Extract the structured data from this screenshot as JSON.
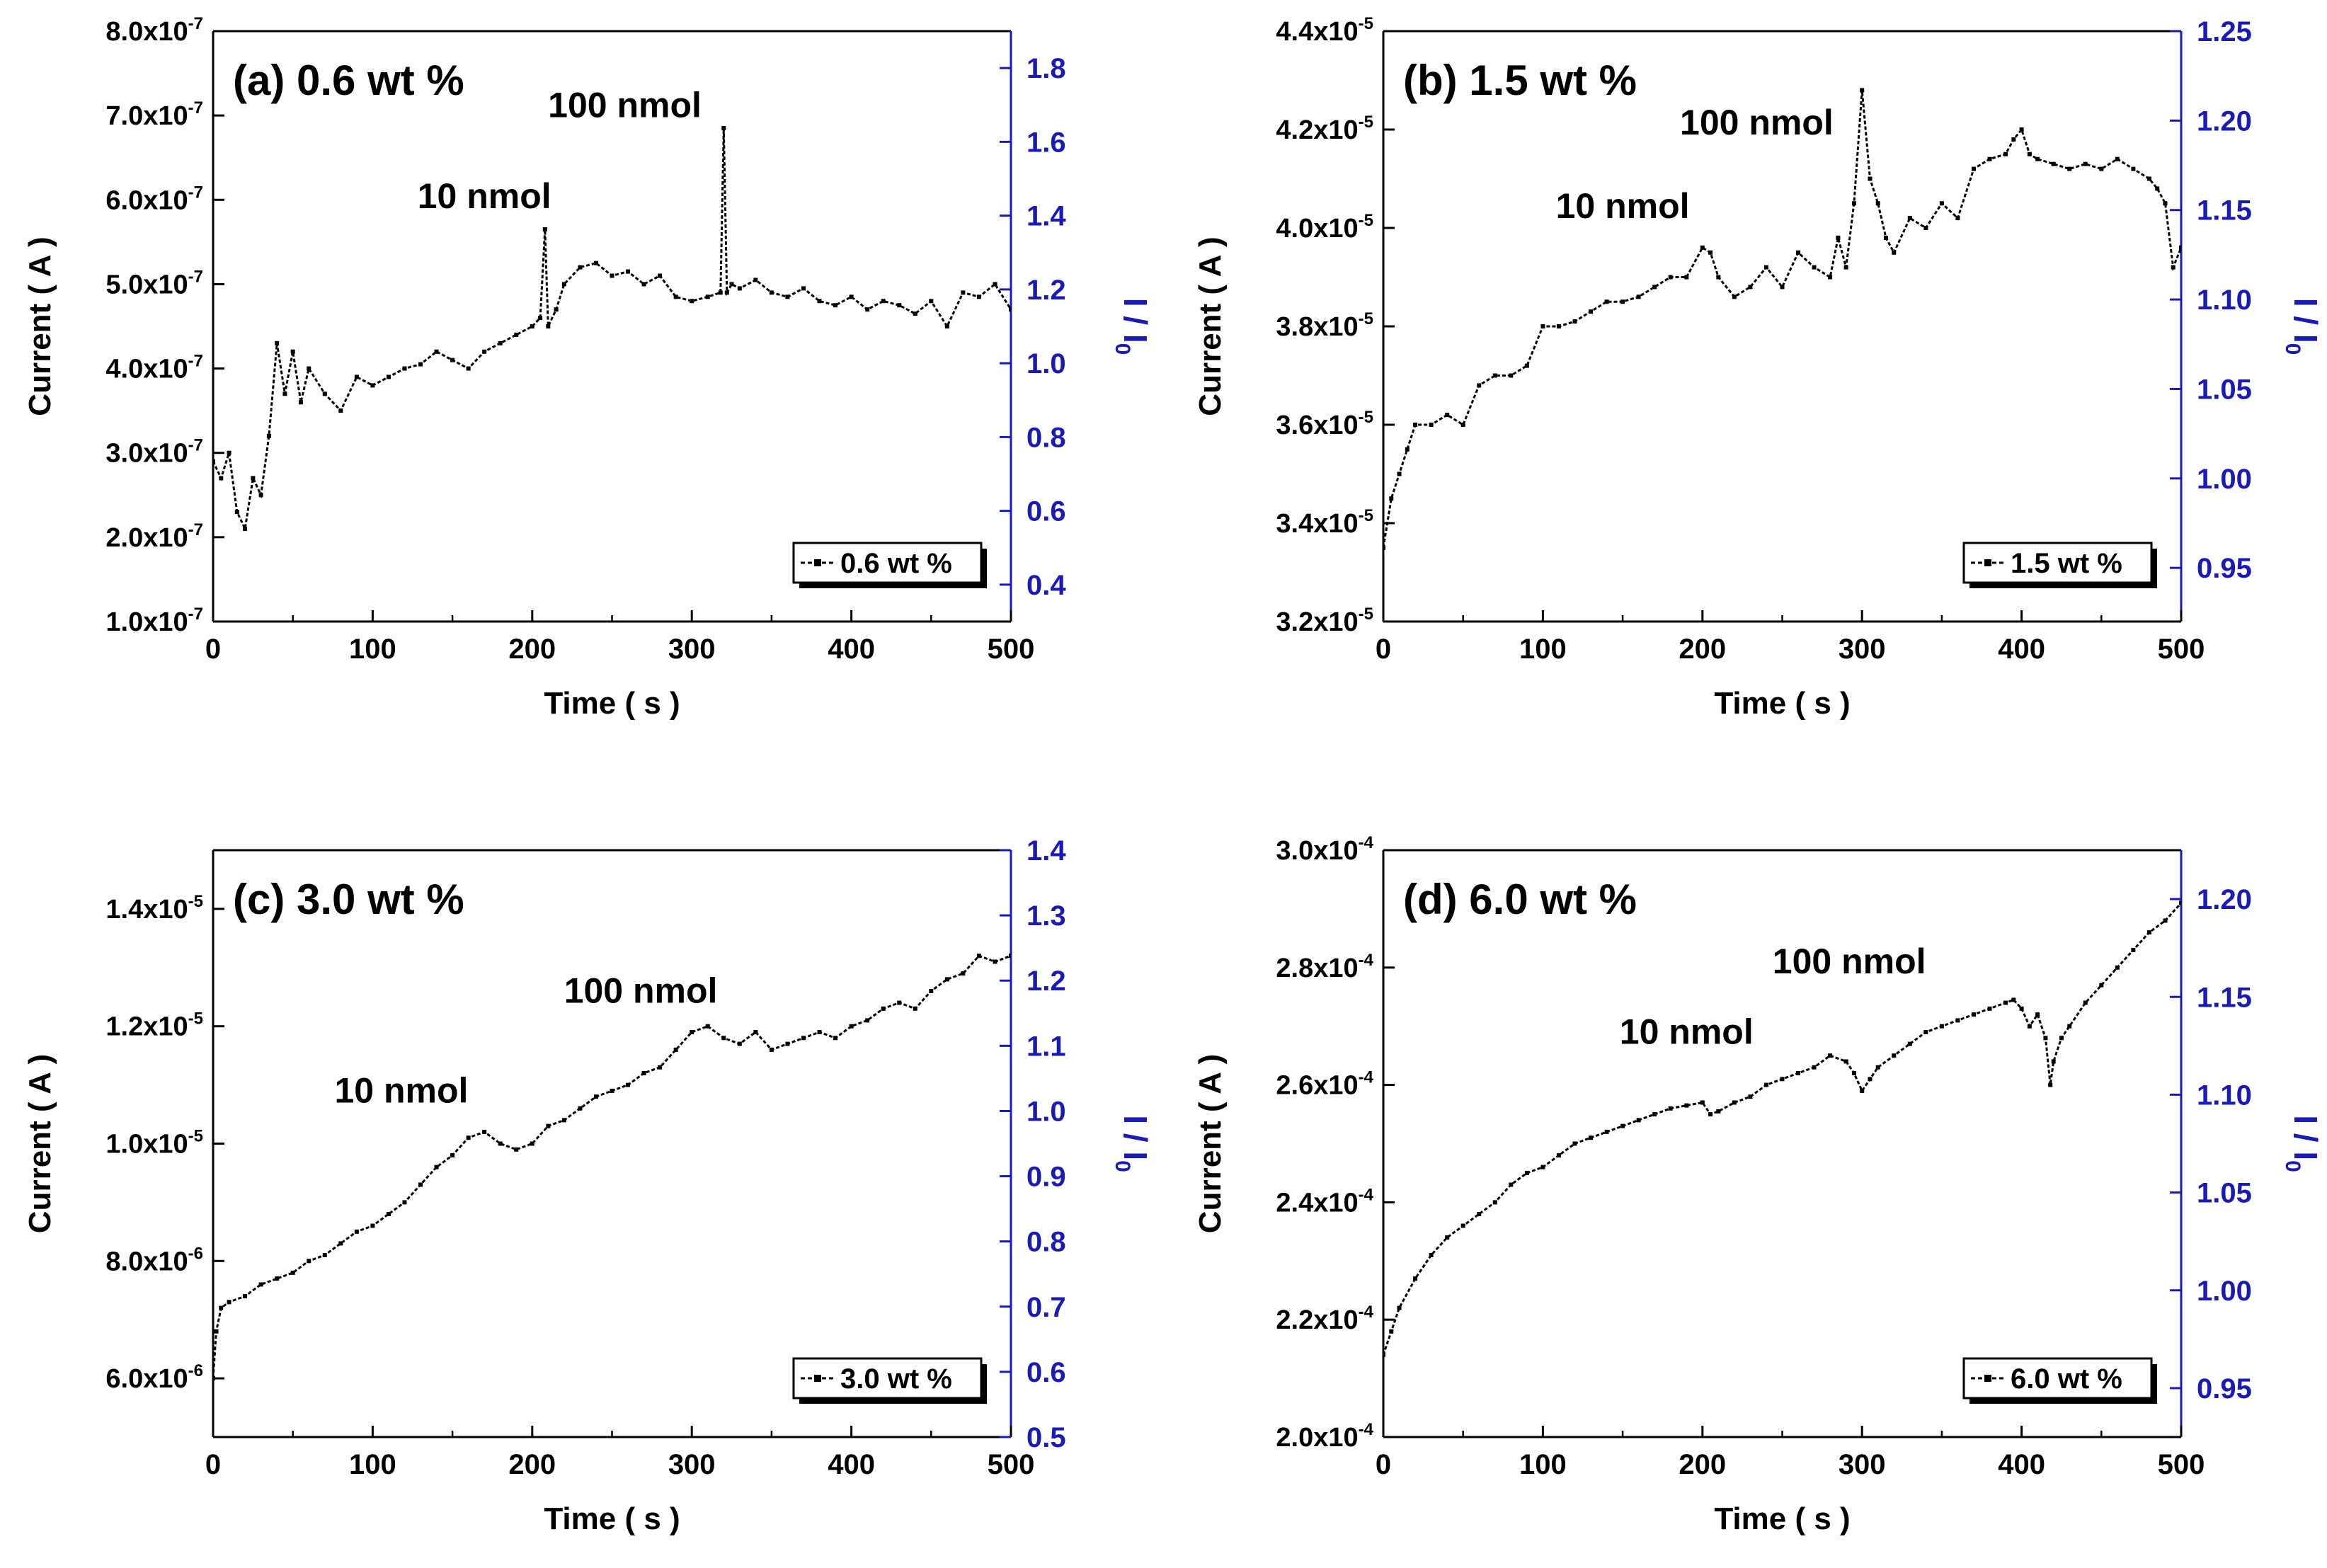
{
  "figure": {
    "colors": {
      "axis": "#000000",
      "right_axis": "#1a1ab4",
      "trace": "#000000",
      "background": "#ffffff"
    }
  },
  "chart_data": [
    {
      "type": "line",
      "panel_label": "(a) 0.6 wt %",
      "xlabel": "Time ( s )",
      "ylabel": "Current ( A )",
      "y2label": "I / I0",
      "xlim": [
        0,
        500
      ],
      "ylim": [
        1e-07,
        8e-07
      ],
      "y2lim": [
        0.3,
        1.9
      ],
      "x_ticks": [
        "0",
        "100",
        "200",
        "300",
        "400",
        "500"
      ],
      "y_ticks": [
        {
          "mant": "1.0x10",
          "exp": "-7"
        },
        {
          "mant": "2.0x10",
          "exp": "-7"
        },
        {
          "mant": "3.0x10",
          "exp": "-7"
        },
        {
          "mant": "4.0x10",
          "exp": "-7"
        },
        {
          "mant": "5.0x10",
          "exp": "-7"
        },
        {
          "mant": "6.0x10",
          "exp": "-7"
        },
        {
          "mant": "7.0x10",
          "exp": "-7"
        },
        {
          "mant": "8.0x10",
          "exp": "-7"
        }
      ],
      "y2_ticks": [
        "0.4",
        "0.6",
        "0.8",
        "1.0",
        "1.2",
        "1.4",
        "1.6",
        "1.8"
      ],
      "legend": "0.6 wt %",
      "legend_position": "bottom-right",
      "annotations": [
        {
          "text": "10 nmol",
          "x": 170,
          "y": 5.9e-07
        },
        {
          "text": "100 nmol",
          "x": 258,
          "y": 6.98e-07
        }
      ],
      "series": [
        {
          "name": "0.6 wt %",
          "x": [
            0,
            5,
            10,
            15,
            20,
            25,
            30,
            35,
            40,
            45,
            50,
            55,
            60,
            70,
            80,
            90,
            100,
            110,
            120,
            130,
            140,
            150,
            160,
            170,
            180,
            190,
            200,
            205,
            208,
            210,
            215,
            220,
            230,
            240,
            250,
            260,
            270,
            280,
            290,
            300,
            310,
            318,
            320,
            322,
            325,
            330,
            340,
            350,
            360,
            370,
            380,
            390,
            400,
            410,
            420,
            430,
            440,
            450,
            460,
            470,
            480,
            490,
            500
          ],
          "values": [
            2.9e-07,
            2.7e-07,
            3e-07,
            2.3e-07,
            2.1e-07,
            2.7e-07,
            2.5e-07,
            3.2e-07,
            4.3e-07,
            3.7e-07,
            4.2e-07,
            3.6e-07,
            4e-07,
            3.7e-07,
            3.5e-07,
            3.9e-07,
            3.8e-07,
            3.9e-07,
            4e-07,
            4.05e-07,
            4.2e-07,
            4.1e-07,
            4e-07,
            4.2e-07,
            4.3e-07,
            4.4e-07,
            4.5e-07,
            4.6e-07,
            5.65e-07,
            4.5e-07,
            4.7e-07,
            5e-07,
            5.2e-07,
            5.25e-07,
            5.1e-07,
            5.15e-07,
            5e-07,
            5.1e-07,
            4.85e-07,
            4.8e-07,
            4.85e-07,
            4.9e-07,
            6.85e-07,
            4.9e-07,
            5e-07,
            4.95e-07,
            5.05e-07,
            4.9e-07,
            4.85e-07,
            4.95e-07,
            4.8e-07,
            4.75e-07,
            4.85e-07,
            4.7e-07,
            4.8e-07,
            4.75e-07,
            4.65e-07,
            4.8e-07,
            4.5e-07,
            4.9e-07,
            4.85e-07,
            5e-07,
            4.7e-07
          ]
        }
      ]
    },
    {
      "type": "line",
      "panel_label": "(b) 1.5 wt %",
      "xlabel": "Time ( s )",
      "ylabel": "Current ( A )",
      "y2label": "I / I0",
      "xlim": [
        0,
        500
      ],
      "ylim": [
        3.2e-05,
        4.4e-05
      ],
      "y2lim": [
        0.92,
        1.25
      ],
      "x_ticks": [
        "0",
        "100",
        "200",
        "300",
        "400",
        "500"
      ],
      "y_ticks": [
        {
          "mant": "3.2x10",
          "exp": "-5"
        },
        {
          "mant": "3.4x10",
          "exp": "-5"
        },
        {
          "mant": "3.6x10",
          "exp": "-5"
        },
        {
          "mant": "3.8x10",
          "exp": "-5"
        },
        {
          "mant": "4.0x10",
          "exp": "-5"
        },
        {
          "mant": "4.2x10",
          "exp": "-5"
        },
        {
          "mant": "4.4x10",
          "exp": "-5"
        }
      ],
      "y2_ticks": [
        "0.95",
        "1.00",
        "1.05",
        "1.10",
        "1.15",
        "1.20",
        "1.25"
      ],
      "legend": "1.5 wt %",
      "legend_position": "bottom-right",
      "annotations": [
        {
          "text": "10 nmol",
          "x": 150,
          "y": 4.02e-05
        },
        {
          "text": "100 nmol",
          "x": 234,
          "y": 4.19e-05
        }
      ],
      "series": [
        {
          "name": "1.5 wt %",
          "x": [
            0,
            5,
            10,
            15,
            20,
            30,
            40,
            50,
            60,
            70,
            80,
            90,
            100,
            110,
            120,
            130,
            140,
            150,
            160,
            170,
            180,
            190,
            200,
            205,
            210,
            220,
            230,
            240,
            250,
            260,
            270,
            280,
            285,
            290,
            295,
            300,
            305,
            310,
            315,
            320,
            330,
            340,
            350,
            360,
            370,
            380,
            390,
            395,
            400,
            405,
            410,
            420,
            430,
            440,
            450,
            460,
            470,
            480,
            485,
            490,
            495,
            500
          ],
          "values": [
            3.35e-05,
            3.45e-05,
            3.5e-05,
            3.55e-05,
            3.6e-05,
            3.6e-05,
            3.62e-05,
            3.6e-05,
            3.68e-05,
            3.7e-05,
            3.7e-05,
            3.72e-05,
            3.8e-05,
            3.8e-05,
            3.81e-05,
            3.83e-05,
            3.85e-05,
            3.85e-05,
            3.86e-05,
            3.88e-05,
            3.9e-05,
            3.9e-05,
            3.96e-05,
            3.95e-05,
            3.9e-05,
            3.86e-05,
            3.88e-05,
            3.92e-05,
            3.88e-05,
            3.95e-05,
            3.92e-05,
            3.9e-05,
            3.98e-05,
            3.92e-05,
            4.05e-05,
            4.28e-05,
            4.1e-05,
            4.05e-05,
            3.98e-05,
            3.95e-05,
            4.02e-05,
            4e-05,
            4.05e-05,
            4.02e-05,
            4.12e-05,
            4.14e-05,
            4.15e-05,
            4.18e-05,
            4.2e-05,
            4.15e-05,
            4.14e-05,
            4.13e-05,
            4.12e-05,
            4.13e-05,
            4.12e-05,
            4.14e-05,
            4.12e-05,
            4.1e-05,
            4.08e-05,
            4.05e-05,
            3.92e-05,
            3.96e-05
          ]
        }
      ]
    },
    {
      "type": "line",
      "panel_label": "(c) 3.0 wt %",
      "xlabel": "Time ( s )",
      "ylabel": "Current ( A )",
      "y2label": "I / I0",
      "xlim": [
        0,
        500
      ],
      "ylim": [
        5e-06,
        1.5e-05
      ],
      "y2lim": [
        0.5,
        1.4
      ],
      "x_ticks": [
        "0",
        "100",
        "200",
        "300",
        "400",
        "500"
      ],
      "y_ticks": [
        {
          "mant": "6.0x10",
          "exp": "-6"
        },
        {
          "mant": "8.0x10",
          "exp": "-6"
        },
        {
          "mant": "1.0x10",
          "exp": "-5"
        },
        {
          "mant": "1.2x10",
          "exp": "-5"
        },
        {
          "mant": "1.4x10",
          "exp": "-5"
        }
      ],
      "y2_ticks": [
        "0.5",
        "0.6",
        "0.7",
        "0.8",
        "0.9",
        "1.0",
        "1.1",
        "1.2",
        "1.3",
        "1.4"
      ],
      "legend": "3.0 wt %",
      "legend_position": "bottom-right",
      "annotations": [
        {
          "text": "10 nmol",
          "x": 118,
          "y": 1.07e-05
        },
        {
          "text": "100 nmol",
          "x": 268,
          "y": 1.24e-05
        }
      ],
      "series": [
        {
          "name": "3.0 wt %",
          "x": [
            0,
            2,
            5,
            10,
            20,
            30,
            40,
            50,
            60,
            70,
            80,
            90,
            100,
            110,
            120,
            130,
            140,
            150,
            160,
            170,
            180,
            190,
            200,
            210,
            220,
            230,
            240,
            250,
            260,
            270,
            280,
            290,
            300,
            310,
            320,
            330,
            340,
            350,
            360,
            370,
            380,
            390,
            400,
            410,
            420,
            430,
            440,
            450,
            460,
            470,
            480,
            490,
            500
          ],
          "values": [
            6e-06,
            6.8e-06,
            7.2e-06,
            7.3e-06,
            7.4e-06,
            7.6e-06,
            7.7e-06,
            7.8e-06,
            8e-06,
            8.1e-06,
            8.3e-06,
            8.5e-06,
            8.6e-06,
            8.8e-06,
            9e-06,
            9.3e-06,
            9.6e-06,
            9.8e-06,
            1.01e-05,
            1.02e-05,
            1e-05,
            9.9e-06,
            1e-05,
            1.03e-05,
            1.04e-05,
            1.06e-05,
            1.08e-05,
            1.09e-05,
            1.1e-05,
            1.12e-05,
            1.13e-05,
            1.16e-05,
            1.19e-05,
            1.2e-05,
            1.18e-05,
            1.17e-05,
            1.19e-05,
            1.16e-05,
            1.17e-05,
            1.18e-05,
            1.19e-05,
            1.18e-05,
            1.2e-05,
            1.21e-05,
            1.23e-05,
            1.24e-05,
            1.23e-05,
            1.26e-05,
            1.28e-05,
            1.29e-05,
            1.32e-05,
            1.31e-05,
            1.32e-05
          ]
        }
      ]
    },
    {
      "type": "line",
      "panel_label": "(d) 6.0 wt %",
      "xlabel": "Time ( s )",
      "ylabel": "Current ( A )",
      "y2label": "I / I0",
      "xlim": [
        0,
        500
      ],
      "ylim": [
        0.0002,
        0.0003
      ],
      "y2lim": [
        0.925,
        1.225
      ],
      "x_ticks": [
        "0",
        "100",
        "200",
        "300",
        "400",
        "500"
      ],
      "y_ticks": [
        {
          "mant": "2.0x10",
          "exp": "-4"
        },
        {
          "mant": "2.2x10",
          "exp": "-4"
        },
        {
          "mant": "2.4x10",
          "exp": "-4"
        },
        {
          "mant": "2.6x10",
          "exp": "-4"
        },
        {
          "mant": "2.8x10",
          "exp": "-4"
        },
        {
          "mant": "3.0x10",
          "exp": "-4"
        }
      ],
      "y2_ticks": [
        "0.95",
        "1.00",
        "1.05",
        "1.10",
        "1.15",
        "1.20"
      ],
      "legend": "6.0 wt %",
      "legend_position": "bottom-right",
      "annotations": [
        {
          "text": "10 nmol",
          "x": 190,
          "y": 0.000267
        },
        {
          "text": "100 nmol",
          "x": 292,
          "y": 0.000279
        }
      ],
      "series": [
        {
          "name": "6.0 wt %",
          "x": [
            0,
            5,
            10,
            20,
            30,
            40,
            50,
            60,
            70,
            80,
            90,
            100,
            110,
            120,
            130,
            140,
            150,
            160,
            170,
            180,
            190,
            200,
            205,
            210,
            220,
            230,
            240,
            250,
            260,
            270,
            280,
            290,
            295,
            300,
            305,
            310,
            320,
            330,
            340,
            350,
            360,
            370,
            380,
            390,
            395,
            400,
            405,
            410,
            415,
            418,
            420,
            425,
            430,
            440,
            450,
            460,
            470,
            480,
            490,
            500
          ],
          "values": [
            0.000214,
            0.000218,
            0.000222,
            0.000227,
            0.000231,
            0.000234,
            0.000236,
            0.000238,
            0.00024,
            0.000243,
            0.000245,
            0.000246,
            0.000248,
            0.00025,
            0.000251,
            0.000252,
            0.000253,
            0.000254,
            0.000255,
            0.000256,
            0.0002565,
            0.000257,
            0.000255,
            0.0002555,
            0.000257,
            0.000258,
            0.00026,
            0.000261,
            0.000262,
            0.000263,
            0.000265,
            0.000264,
            0.000262,
            0.000259,
            0.000261,
            0.000263,
            0.000265,
            0.000267,
            0.000269,
            0.00027,
            0.000271,
            0.000272,
            0.000273,
            0.000274,
            0.0002745,
            0.000273,
            0.00027,
            0.000272,
            0.000268,
            0.00026,
            0.000264,
            0.000268,
            0.00027,
            0.000274,
            0.000277,
            0.00028,
            0.000283,
            0.000286,
            0.000288,
            0.000291
          ]
        }
      ]
    }
  ]
}
